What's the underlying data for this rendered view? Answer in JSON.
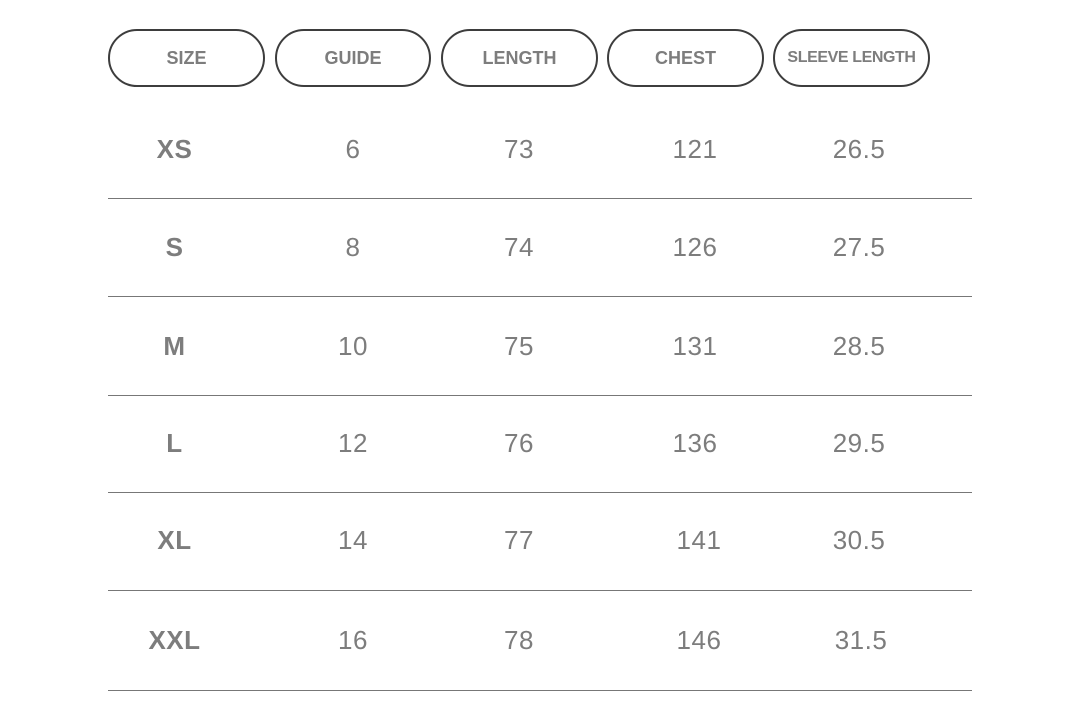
{
  "header": {
    "size": "SIZE",
    "guide": "GUIDE",
    "length": "LENGTH",
    "chest": "CHEST",
    "sleeve_length": "SLEEVE LENGTH"
  },
  "rows": [
    {
      "size": "XS",
      "guide": "6",
      "length": "73",
      "chest": "121",
      "sleeve_length": "26.5"
    },
    {
      "size": "S",
      "guide": "8",
      "length": "74",
      "chest": "126",
      "sleeve_length": "27.5"
    },
    {
      "size": "M",
      "guide": "10",
      "length": "75",
      "chest": "131",
      "sleeve_length": "28.5"
    },
    {
      "size": "L",
      "guide": "12",
      "length": "76",
      "chest": "136",
      "sleeve_length": "29.5"
    },
    {
      "size": "XL",
      "guide": "14",
      "length": "77",
      "chest": "141",
      "sleeve_length": "30.5"
    },
    {
      "size": "XXL",
      "guide": "16",
      "length": "78",
      "chest": "146",
      "sleeve_length": "31.5"
    }
  ],
  "colors": {
    "text": "#7d7d7d",
    "border": "#3d3d3d",
    "divider": "#777777",
    "background": "#ffffff"
  }
}
